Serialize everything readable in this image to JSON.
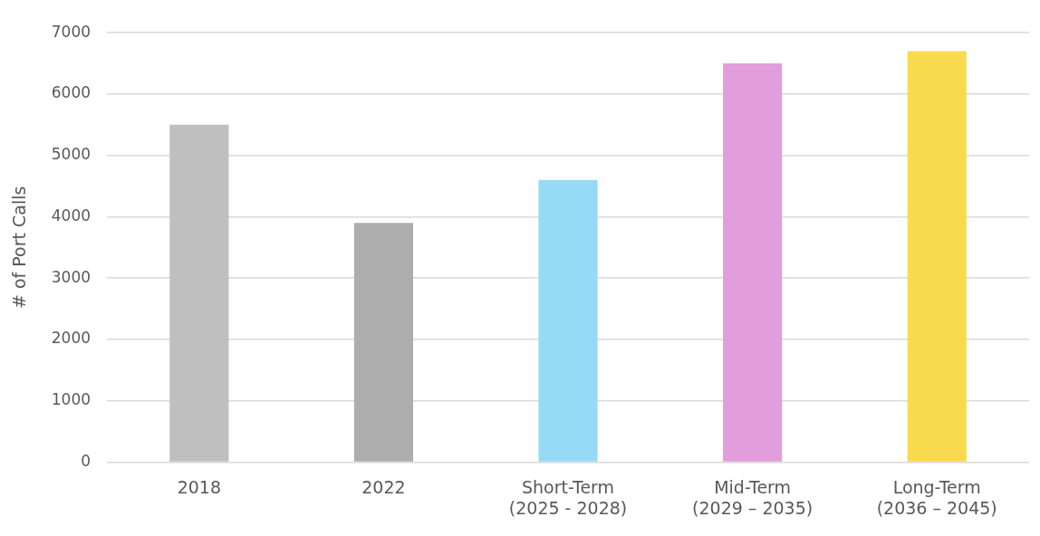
{
  "chart_data": {
    "type": "bar",
    "ylabel": "# of Port Calls",
    "categories": [
      "2018",
      "2022",
      "Short-Term\n(2025 - 2028)",
      "Mid-Term\n(2029 – 2035)",
      "Long-Term\n(2036 – 2045)"
    ],
    "values": [
      5500,
      3900,
      4600,
      6500,
      6700
    ],
    "colors": [
      "#bfbfbf",
      "#adadad",
      "#97daf5",
      "#e29ddc",
      "#f9d94e"
    ],
    "ylim": [
      0,
      7000
    ],
    "yticks": [
      0,
      1000,
      2000,
      3000,
      4000,
      5000,
      6000,
      7000
    ],
    "grid": "y"
  }
}
